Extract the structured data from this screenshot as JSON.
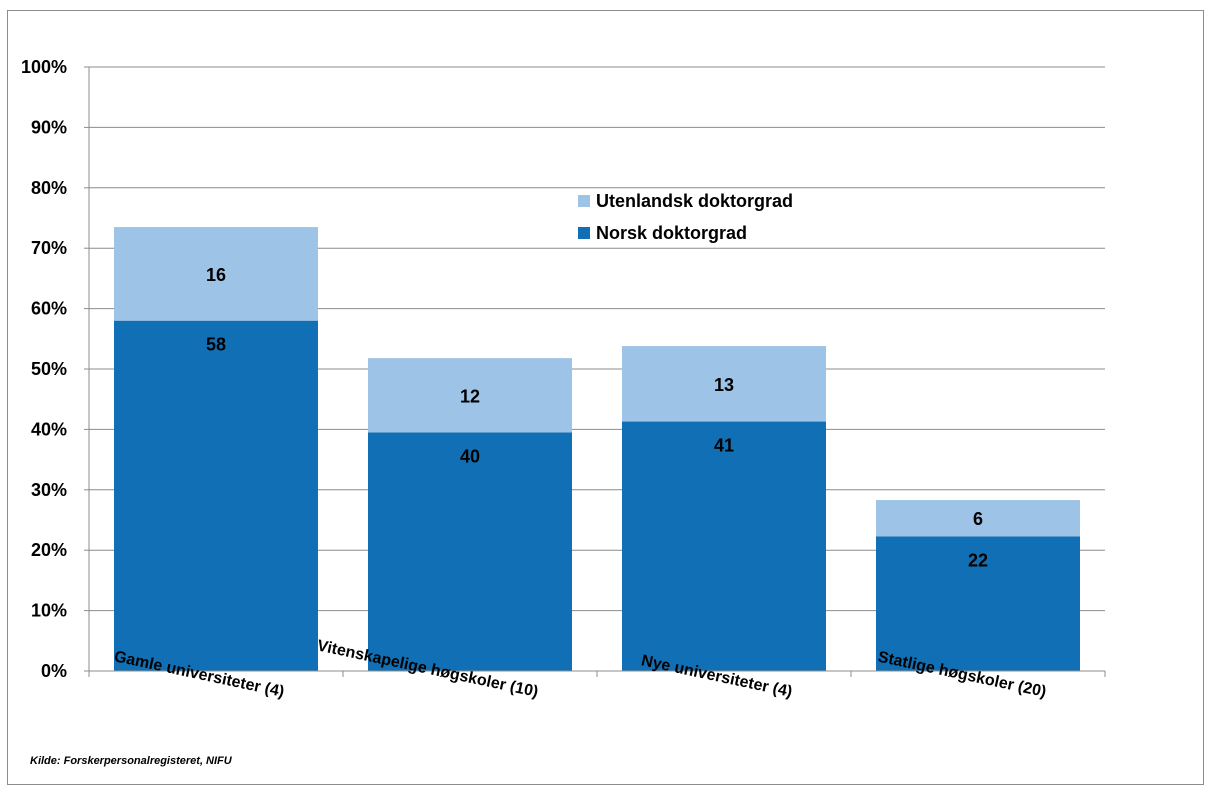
{
  "chart_data": {
    "type": "bar",
    "stacked": true,
    "categories": [
      "Gamle universiteter (4)",
      "Vitenskapelige høgskoler (10)",
      "Nye universiteter (4)",
      "Statlige høgskoler (20)"
    ],
    "series": [
      {
        "name": "Norsk doktorgrad",
        "values": [
          58,
          40,
          41,
          22
        ],
        "color": "#1170b5"
      },
      {
        "name": "Utenlandsk doktorgrad",
        "values": [
          16,
          12,
          13,
          6
        ],
        "color": "#9dc3e6"
      }
    ],
    "plotted_totals": [
      73.5,
      51.8,
      53.8,
      28.3
    ],
    "plotted_lower": [
      58.0,
      39.5,
      41.3,
      22.3
    ],
    "ylim": [
      0,
      100
    ],
    "yticks": [
      "0%",
      "10%",
      "20%",
      "30%",
      "40%",
      "50%",
      "60%",
      "70%",
      "80%",
      "90%",
      "100%"
    ],
    "grid": true,
    "legend_position": "top-center"
  },
  "source": "Kilde: Forskerpersonalregisteret, NIFU"
}
